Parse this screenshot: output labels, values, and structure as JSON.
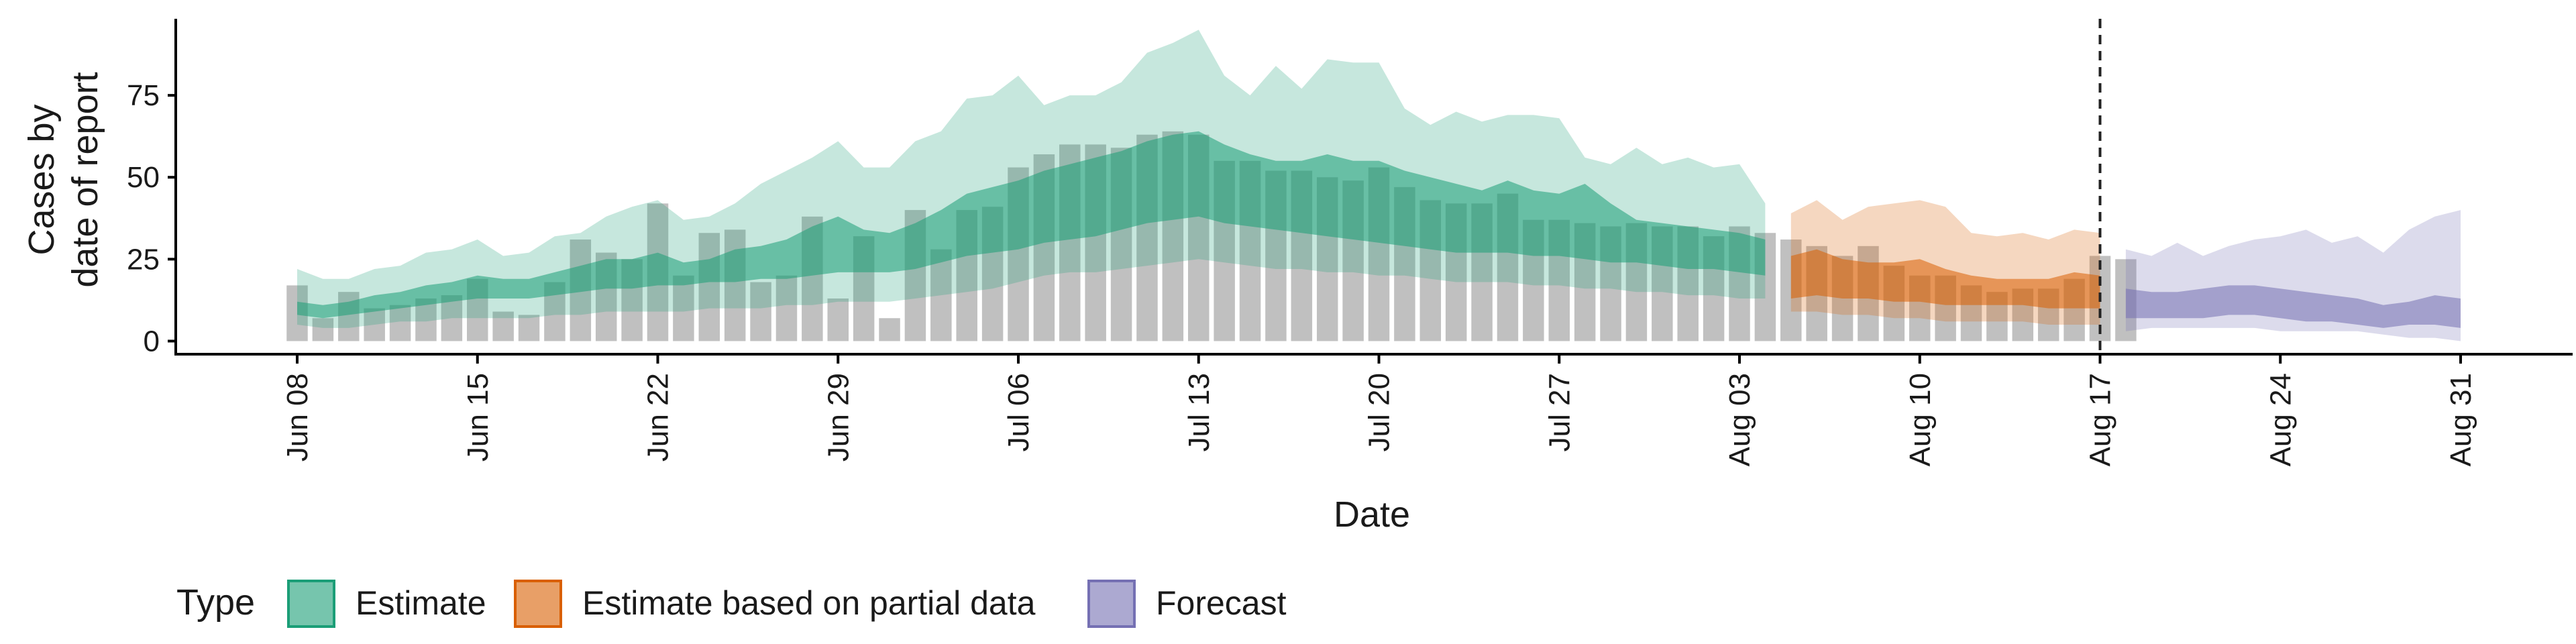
{
  "chart_data": {
    "type": "bar",
    "title": "",
    "xlabel": "Date",
    "ylabel_lines": [
      "Cases by",
      "date of report"
    ],
    "ylim": [
      -4,
      100
    ],
    "yticks": [
      0,
      25,
      50,
      75
    ],
    "x_start": "2020-06-08",
    "x_end": "2020-08-31",
    "xticks": [
      {
        "date": "2020-06-08",
        "label": "Jun 08"
      },
      {
        "date": "2020-06-15",
        "label": "Jun 15"
      },
      {
        "date": "2020-06-22",
        "label": "Jun 22"
      },
      {
        "date": "2020-06-29",
        "label": "Jun 29"
      },
      {
        "date": "2020-07-06",
        "label": "Jul 06"
      },
      {
        "date": "2020-07-13",
        "label": "Jul 13"
      },
      {
        "date": "2020-07-20",
        "label": "Jul 20"
      },
      {
        "date": "2020-07-27",
        "label": "Jul 27"
      },
      {
        "date": "2020-08-03",
        "label": "Aug 03"
      },
      {
        "date": "2020-08-10",
        "label": "Aug 10"
      },
      {
        "date": "2020-08-17",
        "label": "Aug 17"
      },
      {
        "date": "2020-08-24",
        "label": "Aug 24"
      },
      {
        "date": "2020-08-31",
        "label": "Aug 31"
      }
    ],
    "reference_line_date": "2020-08-17",
    "reported_cases": {
      "start": "2020-06-08",
      "values": [
        17,
        7,
        15,
        10,
        11,
        13,
        14,
        19,
        9,
        8,
        18,
        31,
        27,
        25,
        42,
        20,
        33,
        34,
        18,
        20,
        38,
        13,
        32,
        7,
        40,
        28,
        40,
        41,
        53,
        57,
        60,
        60,
        59,
        63,
        64,
        63,
        55,
        55,
        52,
        52,
        50,
        49,
        53,
        47,
        43,
        42,
        42,
        45,
        37,
        37,
        36,
        35,
        36,
        35,
        35,
        32,
        35,
        33,
        31,
        29,
        26,
        29,
        23,
        20,
        20,
        17,
        15,
        16,
        16,
        19,
        26,
        25
      ]
    },
    "series": [
      {
        "name": "Estimate",
        "color": "#1b9e77",
        "start": "2020-06-08",
        "lower90": [
          5,
          4,
          4,
          5,
          6,
          6,
          7,
          7,
          7,
          7,
          8,
          8,
          9,
          9,
          9,
          9,
          10,
          10,
          10,
          11,
          11,
          12,
          12,
          12,
          13,
          14,
          15,
          16,
          18,
          20,
          21,
          21,
          22,
          23,
          24,
          25,
          24,
          23,
          22,
          22,
          21,
          21,
          20,
          20,
          19,
          18,
          18,
          18,
          17,
          17,
          16,
          16,
          15,
          15,
          14,
          14,
          13,
          13
        ],
        "lower50": [
          8,
          7,
          8,
          9,
          10,
          11,
          12,
          13,
          13,
          13,
          14,
          15,
          16,
          16,
          17,
          17,
          18,
          18,
          19,
          19,
          20,
          21,
          21,
          21,
          22,
          24,
          26,
          27,
          28,
          30,
          31,
          32,
          34,
          36,
          37,
          38,
          36,
          35,
          34,
          33,
          32,
          31,
          30,
          29,
          28,
          27,
          27,
          27,
          26,
          26,
          25,
          24,
          24,
          23,
          22,
          22,
          21,
          20
        ],
        "upper50": [
          12,
          11,
          12,
          14,
          15,
          17,
          18,
          20,
          19,
          19,
          21,
          23,
          25,
          25,
          27,
          24,
          25,
          28,
          29,
          31,
          35,
          38,
          34,
          33,
          36,
          40,
          45,
          47,
          49,
          52,
          54,
          56,
          58,
          61,
          63,
          64,
          60,
          57,
          55,
          55,
          57,
          55,
          55,
          52,
          50,
          48,
          46,
          49,
          46,
          45,
          48,
          42,
          37,
          36,
          35,
          34,
          33,
          31
        ],
        "upper90": [
          22,
          19,
          19,
          22,
          23,
          27,
          28,
          31,
          26,
          27,
          32,
          33,
          38,
          41,
          43,
          37,
          38,
          42,
          48,
          52,
          56,
          61,
          53,
          53,
          61,
          64,
          74,
          75,
          81,
          72,
          75,
          75,
          79,
          88,
          91,
          95,
          81,
          75,
          84,
          77,
          86,
          85,
          85,
          71,
          66,
          70,
          67,
          69,
          69,
          68,
          56,
          54,
          59,
          54,
          56,
          53,
          54,
          42
        ]
      },
      {
        "name": "Estimate based on partial data",
        "color": "#d95f02",
        "start": "2020-08-05",
        "lower90": [
          9,
          9,
          8,
          8,
          7,
          7,
          6,
          6,
          6,
          6,
          5,
          5,
          5
        ],
        "lower50": [
          13,
          14,
          13,
          13,
          12,
          12,
          11,
          11,
          11,
          11,
          10,
          10,
          10
        ],
        "upper50": [
          26,
          28,
          25,
          24,
          24,
          25,
          22,
          20,
          19,
          19,
          19,
          21,
          20
        ],
        "upper90": [
          39,
          43,
          37,
          41,
          42,
          43,
          41,
          33,
          32,
          33,
          31,
          34,
          33
        ]
      },
      {
        "name": "Forecast",
        "color": "#7570b3",
        "start": "2020-08-18",
        "lower90": [
          3,
          4,
          4,
          4,
          4,
          4,
          3,
          3,
          3,
          3,
          2,
          1,
          1,
          0
        ],
        "lower50": [
          7,
          7,
          7,
          7,
          8,
          8,
          7,
          6,
          6,
          5,
          4,
          5,
          5,
          4
        ],
        "upper50": [
          16,
          15,
          15,
          16,
          17,
          17,
          16,
          15,
          14,
          13,
          11,
          12,
          14,
          13
        ],
        "upper90": [
          28,
          26,
          30,
          26,
          29,
          31,
          32,
          34,
          30,
          32,
          27,
          34,
          38,
          40
        ]
      }
    ],
    "legend": {
      "position": "bottom-left",
      "title": "Type",
      "items": [
        "Estimate",
        "Estimate based on partial data",
        "Forecast"
      ]
    }
  }
}
